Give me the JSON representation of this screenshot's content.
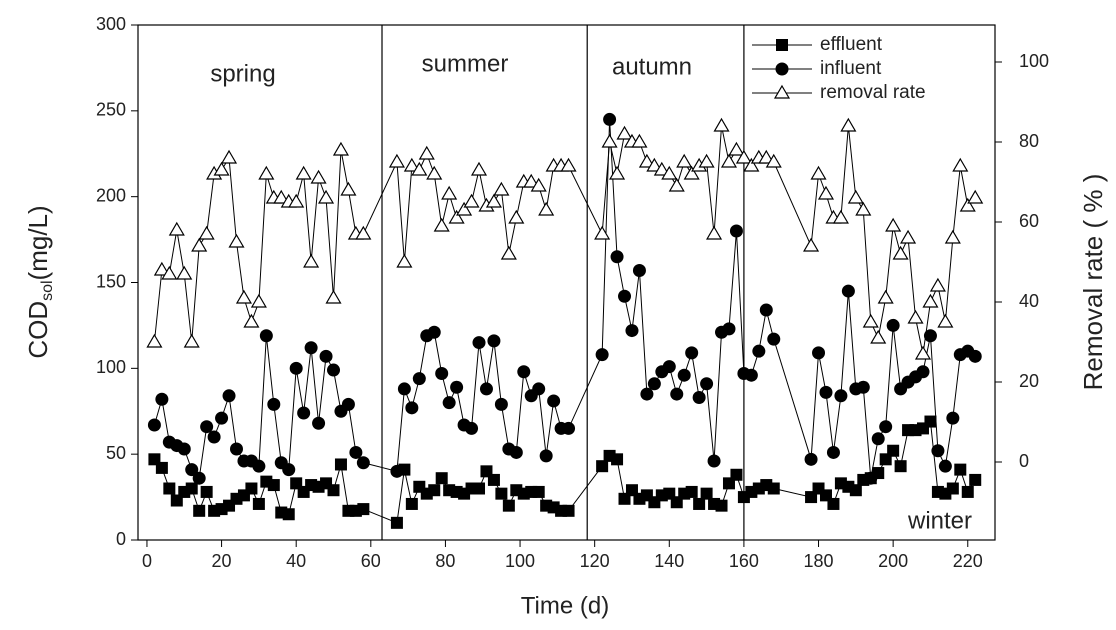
{
  "chart_data": {
    "type": "line",
    "xlabel": "Time (d)",
    "ylabel": "COD",
    "ylabel_sub": "sol",
    "ylabel_unit": "(mg/L)",
    "y2label": "Removal rate ( % )",
    "annotations": [
      "spring",
      "summer",
      "autumn",
      "winter"
    ],
    "dividers": [
      63,
      118,
      160
    ],
    "x": [
      2,
      4,
      6,
      8,
      10,
      12,
      14,
      16,
      18,
      20,
      22,
      24,
      26,
      28,
      30,
      32,
      34,
      36,
      38,
      40,
      42,
      44,
      46,
      48,
      50,
      52,
      54,
      56,
      58,
      67,
      69,
      71,
      73,
      75,
      77,
      79,
      81,
      83,
      85,
      87,
      89,
      91,
      93,
      95,
      97,
      99,
      101,
      103,
      105,
      107,
      109,
      111,
      113,
      122,
      124,
      126,
      128,
      130,
      132,
      134,
      136,
      138,
      140,
      142,
      144,
      146,
      148,
      150,
      152,
      154,
      156,
      158,
      160,
      162,
      164,
      166,
      168,
      178,
      180,
      182,
      184,
      186,
      188,
      190,
      192,
      194,
      196,
      198,
      200,
      202,
      204,
      206,
      208,
      210,
      212,
      214,
      216,
      218,
      220,
      222
    ],
    "series": [
      {
        "name": "effluent",
        "color": "#000000",
        "marker": "square",
        "values": [
          47,
          42,
          30,
          23,
          28,
          30,
          17,
          28,
          17,
          18,
          20,
          24,
          26,
          30,
          21,
          34,
          32,
          16,
          15,
          33,
          28,
          32,
          31,
          33,
          29,
          44,
          17,
          17,
          18,
          10,
          41,
          21,
          31,
          27,
          29,
          36,
          29,
          28,
          27,
          30,
          30,
          40,
          35,
          27,
          20,
          29,
          27,
          28,
          28,
          20,
          19,
          17,
          17,
          43,
          49,
          47,
          24,
          29,
          24,
          26,
          22,
          26,
          27,
          22,
          27,
          28,
          21,
          27,
          21,
          20,
          33,
          38,
          25,
          28,
          30,
          32,
          30,
          25,
          30,
          26,
          21,
          33,
          31,
          29,
          35,
          36,
          39,
          47,
          52,
          43,
          64,
          64,
          65,
          69,
          28,
          27,
          30,
          41,
          28,
          35
        ]
      },
      {
        "name": "influent",
        "color": "#000000",
        "marker": "circle",
        "values": [
          67,
          82,
          57,
          55,
          53,
          41,
          36,
          66,
          60,
          71,
          84,
          53,
          46,
          46,
          43,
          119,
          79,
          45,
          41,
          100,
          74,
          112,
          68,
          107,
          99,
          75,
          79,
          51,
          45,
          40,
          88,
          77,
          94,
          119,
          121,
          97,
          80,
          89,
          67,
          65,
          115,
          88,
          116,
          79,
          53,
          51,
          98,
          84,
          88,
          49,
          81,
          65,
          65,
          108,
          245,
          165,
          142,
          122,
          157,
          85,
          91,
          98,
          101,
          85,
          96,
          109,
          83,
          91,
          46,
          121,
          123,
          180,
          97,
          96,
          110,
          134,
          117,
          47,
          109,
          86,
          51,
          84,
          145,
          88,
          89,
          36,
          59,
          66,
          125,
          88,
          92,
          95,
          98,
          119,
          52,
          43,
          71,
          108,
          110,
          107
        ]
      },
      {
        "name": "removal rate",
        "color": "#000000",
        "marker": "triangle",
        "axis": "y2",
        "values": [
          30,
          48,
          47,
          58,
          47,
          30,
          54,
          57,
          72,
          73,
          76,
          55,
          41,
          35,
          40,
          72,
          66,
          66,
          65,
          65,
          72,
          50,
          71,
          66,
          41,
          78,
          68,
          57,
          57,
          75,
          50,
          74,
          73,
          77,
          72,
          59,
          67,
          61,
          63,
          65,
          73,
          64,
          65,
          68,
          52,
          61,
          70,
          70,
          69,
          63,
          74,
          74,
          74,
          57,
          80,
          72,
          82,
          80,
          80,
          75,
          74,
          73,
          72,
          69,
          75,
          72,
          74,
          75,
          57,
          84,
          75,
          78,
          76,
          74,
          76,
          76,
          75,
          54,
          72,
          67,
          61,
          61,
          84,
          66,
          63,
          35,
          31,
          41,
          59,
          52,
          56,
          36,
          27,
          40,
          44,
          35,
          56,
          74,
          64,
          66
        ]
      }
    ],
    "xlim": [
      -2.4,
      227.3
    ],
    "xticks": [
      0,
      20,
      40,
      60,
      80,
      100,
      120,
      140,
      160,
      180,
      200,
      220
    ],
    "ylim": [
      0,
      300
    ],
    "yticks": [
      0,
      50,
      100,
      150,
      200,
      250,
      300
    ],
    "y2lim": [
      -19.5,
      109.25
    ],
    "y2ticks": [
      0,
      20,
      40,
      60,
      80,
      100
    ],
    "legend": "upper right"
  }
}
